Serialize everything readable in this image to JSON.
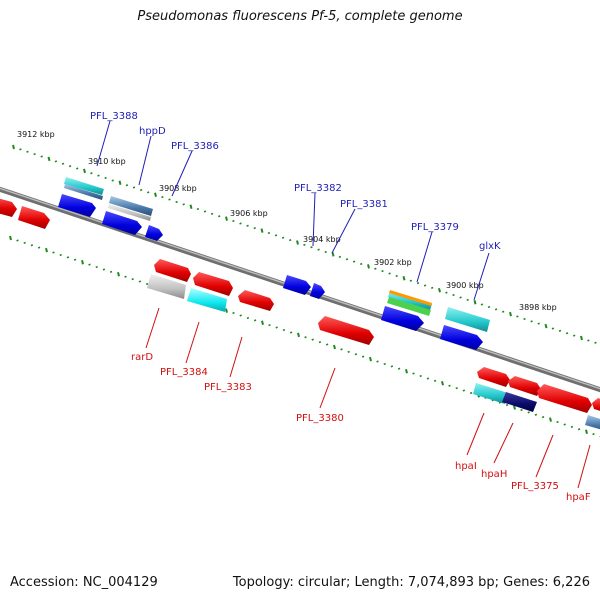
{
  "title": "Pseudomonas fluorescens Pf-5, complete genome",
  "footer": {
    "accession": "Accession: NC_004129",
    "summary": "Topology: circular; Length: 7,074,893 bp; Genes: 6,226"
  },
  "colors": {
    "backbone": "#7a7a7a",
    "tick": "#1e8a1e",
    "label_blue": "#1f1fb4",
    "label_red": "#d11010"
  },
  "kbp_labels": [
    "3912 kbp",
    "3910 kbp",
    "3908 kbp",
    "3906 kbp",
    "3904 kbp",
    "3902 kbp",
    "3900 kbp",
    "3898 kbp"
  ],
  "gene_labels_top": [
    "PFL_3388",
    "hppD",
    "PFL_3386",
    "PFL_3382",
    "PFL_3381",
    "PFL_3379",
    "glxK"
  ],
  "gene_labels_bottom": [
    "rarD",
    "PFL_3384",
    "PFL_3383",
    "PFL_3380",
    "hpaI",
    "hpaH",
    "PFL_3375",
    "hpaF"
  ]
}
